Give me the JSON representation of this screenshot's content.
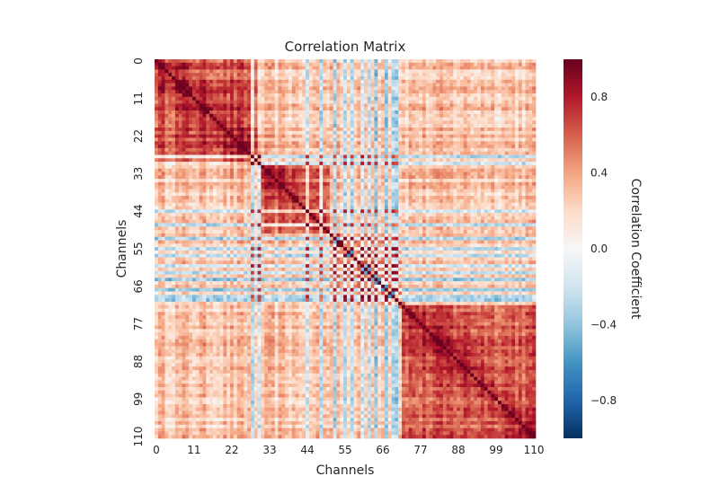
{
  "chart_data": {
    "type": "heatmap",
    "title": "Correlation Matrix",
    "xlabel": "Channels",
    "ylabel": "Channels",
    "n_channels": 111,
    "x_ticks": [
      "0",
      "11",
      "22",
      "33",
      "44",
      "55",
      "66",
      "77",
      "88",
      "99",
      "110"
    ],
    "y_ticks": [
      "0",
      "11",
      "22",
      "33",
      "44",
      "55",
      "66",
      "77",
      "88",
      "99",
      "110"
    ],
    "grid": false,
    "colorbar": {
      "label": "Correlation Coefficient",
      "vmin": -1,
      "vmax": 1,
      "ticks": [
        "0.8",
        "0.4",
        "0.0",
        "−0.4",
        "−0.8"
      ],
      "tick_values": [
        0.8,
        0.4,
        0.0,
        -0.4,
        -0.8
      ],
      "colormap": "RdBu_r",
      "stops": [
        "#053061",
        "#2166ac",
        "#4393c3",
        "#92c5de",
        "#d1e5f0",
        "#f7f7f7",
        "#fddbc7",
        "#f4a582",
        "#d6604d",
        "#b2182b",
        "#67001f"
      ]
    },
    "blocks": [
      {
        "from": 0,
        "to": 30,
        "mean": 0.62
      },
      {
        "from": 31,
        "to": 50,
        "mean": 0.55
      },
      {
        "from": 51,
        "to": 71,
        "mean": 0.45
      },
      {
        "from": 72,
        "to": 110,
        "mean": 0.6
      }
    ],
    "anticorrelated_channels": [
      28,
      30,
      44,
      48,
      52,
      55,
      57,
      60,
      62,
      64,
      67,
      69,
      70
    ]
  }
}
